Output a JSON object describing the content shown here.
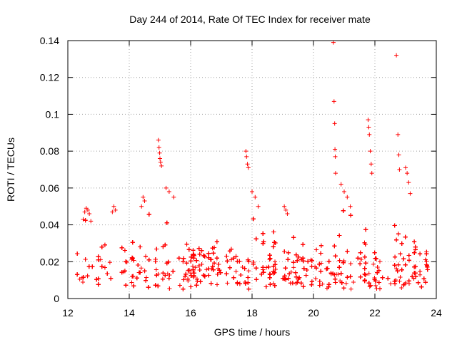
{
  "chart_data": {
    "type": "scatter",
    "title": "Day 244 of 2014, Rate Of TEC Index for receiver mate",
    "xlabel": "GPS time / hours",
    "ylabel": "ROTI / TECUs",
    "xlim": [
      12,
      24
    ],
    "ylim": [
      0,
      0.14
    ],
    "x_ticks": [
      12,
      14,
      16,
      18,
      20,
      22,
      24
    ],
    "x_tick_labels": [
      "12",
      "14",
      "16",
      "18",
      "20",
      "22",
      "24"
    ],
    "y_ticks": [
      0,
      0.02,
      0.04,
      0.06,
      0.08,
      0.1,
      0.12,
      0.14
    ],
    "y_tick_labels": [
      "0",
      "0.02",
      "0.04",
      "0.06",
      "0.08",
      "0.1",
      "0.12",
      "0.14"
    ],
    "grid": true,
    "marker": "+",
    "series_color": "#ff0000",
    "data_x_range": [
      12.3,
      23.75
    ],
    "background_band_typical": [
      0.005,
      0.02
    ],
    "peak_groups": [
      {
        "x": [
          12.5,
          12.55,
          12.6,
          12.65,
          12.7,
          12.75
        ],
        "y": [
          0.043,
          0.047,
          0.049,
          0.048,
          0.046,
          0.042
        ]
      },
      {
        "x": [
          13.45,
          13.5,
          13.55
        ],
        "y": [
          0.047,
          0.05,
          0.048
        ]
      },
      {
        "x": [
          14.4,
          14.45,
          14.5
        ],
        "y": [
          0.05,
          0.055,
          0.053
        ]
      },
      {
        "x": [
          14.95,
          14.97,
          14.99,
          15.0,
          15.02,
          15.05
        ],
        "y": [
          0.086,
          0.082,
          0.079,
          0.076,
          0.074,
          0.072
        ]
      },
      {
        "x": [
          15.2,
          15.3,
          15.45
        ],
        "y": [
          0.06,
          0.058,
          0.055
        ]
      },
      {
        "x": [
          17.8,
          17.82,
          17.85,
          17.88
        ],
        "y": [
          0.08,
          0.077,
          0.073,
          0.071
        ]
      },
      {
        "x": [
          18.0,
          18.1,
          18.2
        ],
        "y": [
          0.058,
          0.055,
          0.05
        ]
      },
      {
        "x": [
          19.05,
          19.1,
          19.15
        ],
        "y": [
          0.05,
          0.048,
          0.046
        ]
      },
      {
        "x": [
          20.65,
          20.67,
          20.69,
          20.7,
          20.71,
          20.72
        ],
        "y": [
          0.139,
          0.107,
          0.095,
          0.081,
          0.077,
          0.068
        ]
      },
      {
        "x": [
          20.9,
          21.0,
          21.1,
          21.2
        ],
        "y": [
          0.062,
          0.058,
          0.055,
          0.05
        ]
      },
      {
        "x": [
          21.78,
          21.8,
          21.82,
          21.85,
          21.88,
          21.9
        ],
        "y": [
          0.097,
          0.093,
          0.089,
          0.08,
          0.073,
          0.068
        ]
      },
      {
        "x": [
          22.7,
          22.75,
          22.78,
          22.8
        ],
        "y": [
          0.132,
          0.089,
          0.078,
          0.07
        ]
      },
      {
        "x": [
          23.0,
          23.05,
          23.1,
          23.15
        ],
        "y": [
          0.071,
          0.068,
          0.063,
          0.057
        ]
      }
    ]
  }
}
